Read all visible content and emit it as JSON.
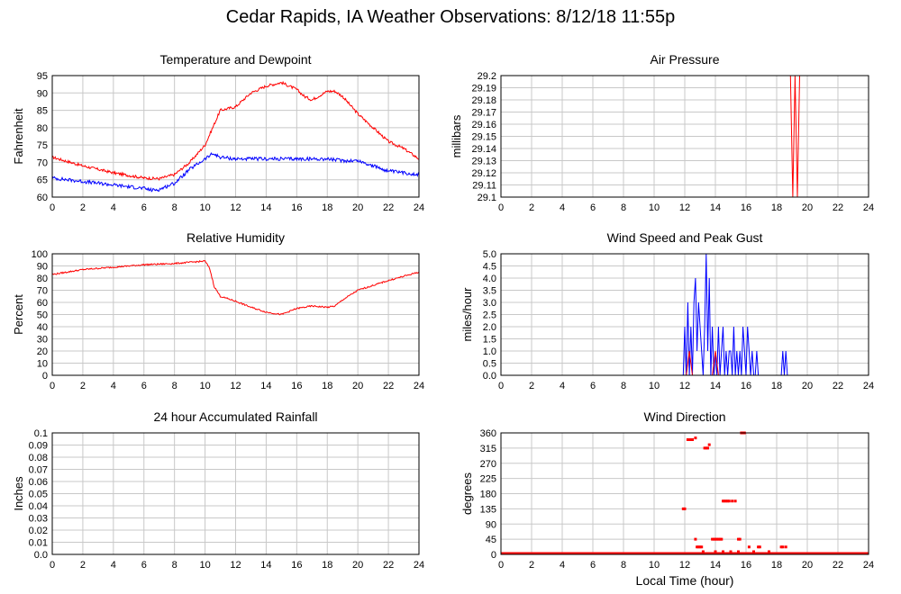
{
  "title": "Cedar Rapids, IA Weather Observations: 8/12/18 11:55p",
  "x_axis_label": "Local Time (hour)",
  "colors": {
    "red": "#ff0000",
    "blue": "#0000ff",
    "grid": "#c8c8c8",
    "frame": "#000000"
  },
  "chart_data": [
    {
      "id": "temp",
      "type": "line",
      "title": "Temperature and Dewpoint",
      "ylabel": "Fahrenheit",
      "xlim": [
        0,
        24
      ],
      "xticks": [
        0,
        2,
        4,
        6,
        8,
        10,
        12,
        14,
        16,
        18,
        20,
        22,
        24
      ],
      "ylim": [
        60,
        95
      ],
      "yticks": [
        "60",
        "65",
        "70",
        "75",
        "80",
        "85",
        "90",
        "95"
      ],
      "grid": true,
      "series": [
        {
          "color": "red",
          "noise": 0.4,
          "x": [
            0,
            2,
            4,
            6,
            7,
            8,
            9,
            10,
            10.5,
            11,
            12,
            13,
            14,
            15,
            16,
            16.5,
            17,
            18,
            18.5,
            19,
            20,
            21,
            22,
            23,
            24
          ],
          "y": [
            71.5,
            69,
            67,
            65.5,
            65.3,
            66.5,
            70,
            75,
            80,
            85,
            86,
            90,
            92,
            93,
            91,
            89,
            88,
            90.5,
            90.5,
            89,
            84,
            80,
            76,
            74,
            71
          ]
        },
        {
          "color": "blue",
          "noise": 0.5,
          "x": [
            0,
            2,
            4,
            6,
            6.5,
            7,
            8,
            9,
            10,
            10.5,
            11,
            12,
            14,
            16,
            18,
            19,
            20,
            21,
            22,
            23,
            24
          ],
          "y": [
            65.5,
            64.5,
            63.5,
            62.5,
            62,
            62.2,
            64,
            68,
            71,
            72.5,
            71.5,
            71,
            71,
            71,
            71,
            70.5,
            70.5,
            69,
            67.5,
            67,
            66.5
          ]
        }
      ]
    },
    {
      "id": "pressure",
      "type": "line",
      "title": "Air Pressure",
      "ylabel": "millibars",
      "xlim": [
        0,
        24
      ],
      "xticks": [
        0,
        2,
        4,
        6,
        8,
        10,
        12,
        14,
        16,
        18,
        20,
        22,
        24
      ],
      "ylim": [
        29.1,
        29.2
      ],
      "yticks": [
        "29.1",
        "29.11",
        "29.12",
        "29.13",
        "29.14",
        "29.15",
        "29.16",
        "29.17",
        "29.18",
        "29.19",
        "29.2"
      ],
      "grid": true,
      "series": [
        {
          "color": "red",
          "noise": 0,
          "x": [
            0,
            18.9,
            19.05,
            19.2,
            19.35,
            19.5,
            24
          ],
          "y": [
            29.2,
            29.2,
            29.1,
            29.2,
            29.1,
            29.2,
            29.2
          ]
        }
      ]
    },
    {
      "id": "rh",
      "type": "line",
      "title": "Relative Humidity",
      "ylabel": "Percent",
      "xlim": [
        0,
        24
      ],
      "xticks": [
        0,
        2,
        4,
        6,
        8,
        10,
        12,
        14,
        16,
        18,
        20,
        22,
        24
      ],
      "ylim": [
        0,
        100
      ],
      "yticks": [
        "0",
        "10",
        "20",
        "30",
        "40",
        "50",
        "60",
        "70",
        "80",
        "90",
        "100"
      ],
      "grid": true,
      "series": [
        {
          "color": "red",
          "noise": 0.6,
          "x": [
            0,
            1,
            2,
            4,
            6,
            8,
            9,
            10,
            10.3,
            10.6,
            11,
            12,
            13,
            14,
            15,
            16,
            17,
            18,
            18.5,
            19,
            20,
            22,
            24
          ],
          "y": [
            83,
            85,
            87,
            89,
            91,
            92,
            93,
            94,
            88,
            73,
            65,
            61,
            56,
            52,
            50,
            55,
            57,
            56,
            57,
            62,
            70,
            78,
            85
          ]
        }
      ]
    },
    {
      "id": "wind",
      "type": "line",
      "title": "Wind Speed and Peak Gust",
      "ylabel": "miles/hour",
      "xlim": [
        0,
        24
      ],
      "xticks": [
        0,
        2,
        4,
        6,
        8,
        10,
        12,
        14,
        16,
        18,
        20,
        22,
        24
      ],
      "ylim": [
        0,
        5
      ],
      "yticks": [
        "0.0",
        "0.5",
        "1.0",
        "1.5",
        "2.0",
        "2.5",
        "3.0",
        "3.5",
        "4.0",
        "4.5",
        "5.0"
      ],
      "grid": true,
      "series": [
        {
          "color": "blue",
          "noise": 0,
          "x": [
            0,
            11.9,
            12.0,
            12.1,
            12.2,
            12.3,
            12.4,
            12.5,
            12.6,
            12.7,
            12.8,
            12.9,
            13.0,
            13.1,
            13.2,
            13.3,
            13.4,
            13.5,
            13.6,
            13.7,
            13.8,
            13.9,
            14.0,
            14.1,
            14.2,
            14.3,
            14.4,
            14.5,
            14.6,
            14.7,
            14.8,
            14.9,
            15.0,
            15.1,
            15.2,
            15.3,
            15.4,
            15.5,
            15.6,
            15.7,
            15.8,
            15.9,
            16.0,
            16.1,
            16.2,
            16.3,
            16.4,
            16.5,
            16.6,
            16.7,
            16.8,
            16.9,
            18.3,
            18.4,
            18.5,
            18.6,
            18.7,
            24
          ],
          "y": [
            0,
            0,
            2,
            0,
            3,
            0,
            2,
            0,
            3,
            4,
            1,
            3,
            2,
            1,
            0,
            2,
            5,
            1,
            4,
            0,
            2,
            0,
            1,
            0,
            2,
            0,
            1,
            2,
            0,
            1,
            0,
            1,
            1,
            0,
            2,
            0,
            1,
            0,
            1,
            0,
            2,
            1,
            0,
            2,
            1,
            0,
            1,
            0,
            0,
            1,
            0,
            0,
            0,
            1,
            0,
            1,
            0,
            0
          ]
        },
        {
          "color": "red",
          "noise": 0,
          "x": [
            0,
            12.1,
            12.3,
            12.5,
            13.8,
            14.0,
            14.2,
            24
          ],
          "y": [
            0,
            0,
            1,
            0,
            0,
            1,
            0,
            0
          ]
        }
      ]
    },
    {
      "id": "rain",
      "type": "line",
      "title": "24 hour Accumulated Rainfall",
      "ylabel": "Inches",
      "xlim": [
        0,
        24
      ],
      "xticks": [
        0,
        2,
        4,
        6,
        8,
        10,
        12,
        14,
        16,
        18,
        20,
        22,
        24
      ],
      "ylim": [
        0,
        0.1
      ],
      "yticks": [
        "0.0",
        "0.01",
        "0.02",
        "0.03",
        "0.04",
        "0.05",
        "0.06",
        "0.07",
        "0.08",
        "0.09",
        "0.1"
      ],
      "grid": true,
      "series": [
        {
          "color": "red",
          "noise": 0,
          "x": [
            0,
            24
          ],
          "y": [
            0,
            0
          ]
        },
        {
          "color": "blue",
          "noise": 0,
          "x": [
            0,
            24
          ],
          "y": [
            0,
            0
          ]
        }
      ]
    },
    {
      "id": "direction",
      "type": "scatter",
      "title": "Wind Direction",
      "ylabel": "degrees",
      "xlabel": "Local Time (hour)",
      "xlim": [
        0,
        24
      ],
      "xticks": [
        0,
        2,
        4,
        6,
        8,
        10,
        12,
        14,
        16,
        18,
        20,
        22,
        24
      ],
      "ylim": [
        0,
        360
      ],
      "yticks": [
        "0",
        "45",
        "90",
        "135",
        "180",
        "225",
        "270",
        "315",
        "360"
      ],
      "grid": true,
      "baseline": {
        "color": "red",
        "x": [
          0,
          24
        ],
        "y": 0
      },
      "series": [
        {
          "color": "red",
          "points": [
            [
              11.9,
              135
            ],
            [
              12.0,
              135
            ],
            [
              12.2,
              340
            ],
            [
              12.3,
              340
            ],
            [
              12.4,
              340
            ],
            [
              12.5,
              340
            ],
            [
              12.7,
              345
            ],
            [
              13.3,
              315
            ],
            [
              13.4,
              315
            ],
            [
              13.5,
              315
            ],
            [
              13.6,
              325
            ],
            [
              12.7,
              45
            ],
            [
              12.8,
              22
            ],
            [
              12.9,
              22
            ],
            [
              13.0,
              22
            ],
            [
              13.1,
              22
            ],
            [
              13.2,
              8
            ],
            [
              13.8,
              45
            ],
            [
              13.9,
              45
            ],
            [
              14.0,
              45
            ],
            [
              14.1,
              45
            ],
            [
              14.2,
              45
            ],
            [
              14.3,
              45
            ],
            [
              14.4,
              45
            ],
            [
              14.5,
              158
            ],
            [
              14.6,
              158
            ],
            [
              14.7,
              158
            ],
            [
              14.8,
              158
            ],
            [
              14.9,
              158
            ],
            [
              15.1,
              158
            ],
            [
              15.3,
              158
            ],
            [
              15.5,
              45
            ],
            [
              15.6,
              45
            ],
            [
              15.7,
              360
            ],
            [
              15.8,
              360
            ],
            [
              15.9,
              360
            ],
            [
              16.2,
              22
            ],
            [
              16.8,
              22
            ],
            [
              16.9,
              22
            ],
            [
              18.3,
              22
            ],
            [
              18.4,
              22
            ],
            [
              18.6,
              22
            ],
            [
              14.0,
              8
            ],
            [
              14.5,
              8
            ],
            [
              15.0,
              8
            ],
            [
              15.5,
              8
            ],
            [
              16.5,
              8
            ],
            [
              17.5,
              8
            ]
          ]
        }
      ]
    }
  ]
}
